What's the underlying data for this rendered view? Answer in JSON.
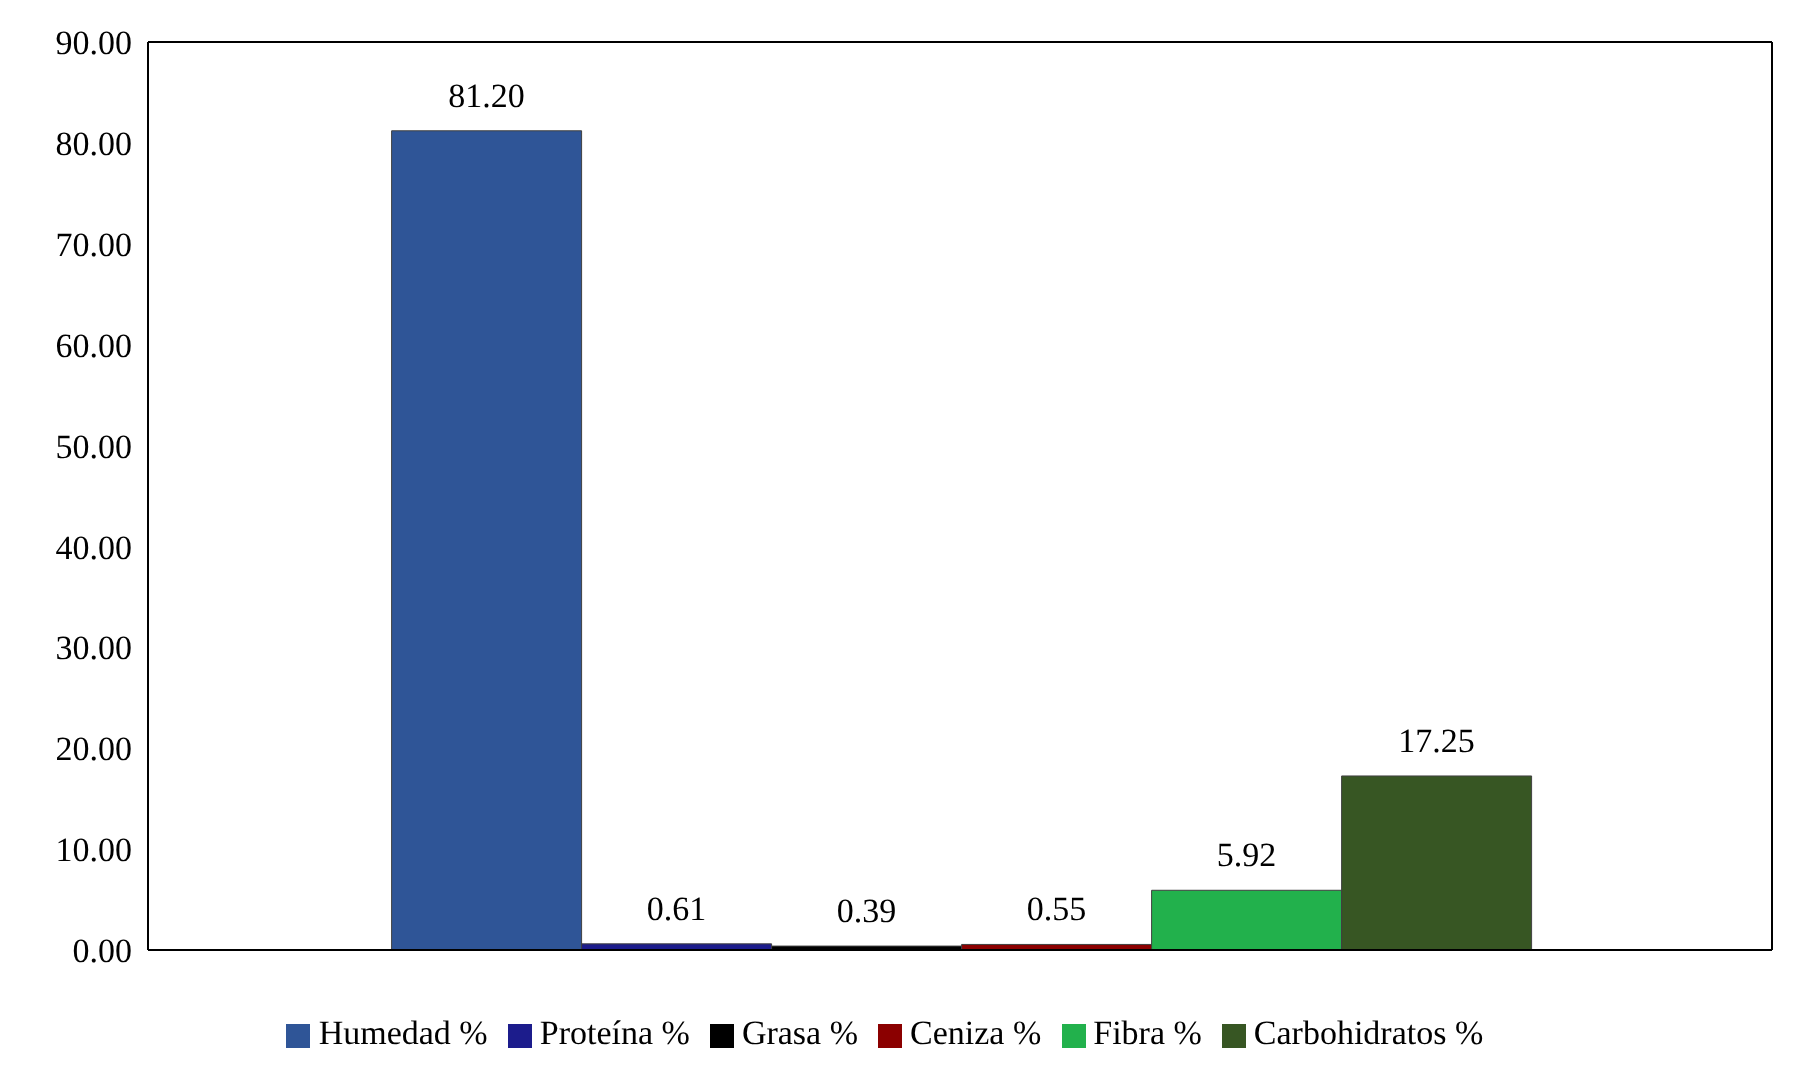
{
  "chart_data": {
    "type": "bar",
    "categories": [
      null
    ],
    "series": [
      {
        "name": "Humedad %",
        "color": "#2f5597",
        "values": [
          81.2
        ],
        "value_labels": [
          "81.20"
        ]
      },
      {
        "name": "Proteína %",
        "color": "#1c1c8c",
        "values": [
          0.61
        ],
        "value_labels": [
          "0.61"
        ]
      },
      {
        "name": "Grasa %",
        "color": "#000000",
        "values": [
          0.39
        ],
        "value_labels": [
          "0.39"
        ]
      },
      {
        "name": "Ceniza %",
        "color": "#8b0000",
        "values": [
          0.55
        ],
        "value_labels": [
          "0.55"
        ]
      },
      {
        "name": "Fibra %",
        "color": "#22b14c",
        "values": [
          5.92
        ],
        "value_labels": [
          "5.92"
        ]
      },
      {
        "name": "Carbohidratos %",
        "color": "#375623",
        "values": [
          17.25
        ],
        "value_labels": [
          "17.25"
        ]
      }
    ],
    "ylim": [
      0,
      90
    ],
    "yticks": [
      {
        "value": 0,
        "label": "0.00"
      },
      {
        "value": 10,
        "label": "10.00"
      },
      {
        "value": 20,
        "label": "20.00"
      },
      {
        "value": 30,
        "label": "30.00"
      },
      {
        "value": 40,
        "label": "40.00"
      },
      {
        "value": 50,
        "label": "50.00"
      },
      {
        "value": 60,
        "label": "60.00"
      },
      {
        "value": 70,
        "label": "70.00"
      },
      {
        "value": 80,
        "label": "80.00"
      },
      {
        "value": 90,
        "label": "90.00"
      }
    ],
    "grid": false,
    "legend": "bottom"
  }
}
